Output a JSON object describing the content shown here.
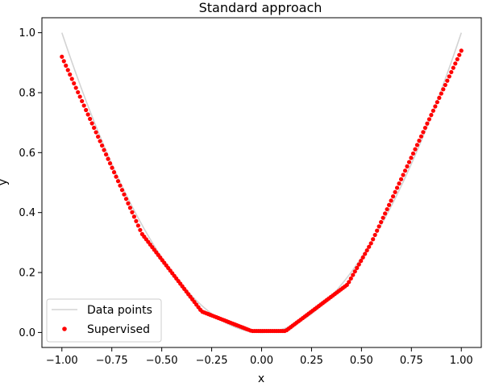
{
  "chart_data": {
    "type": "line",
    "title": "Standard approach",
    "xlabel": "x",
    "ylabel": "y",
    "xlim": [
      -1.1,
      1.1
    ],
    "ylim": [
      -0.05,
      1.05
    ],
    "grid": false,
    "legend_placement": "bottom-left",
    "xticks": [
      -1.0,
      -0.75,
      -0.5,
      -0.25,
      0.0,
      0.25,
      0.5,
      0.75,
      1.0
    ],
    "xtick_labels": [
      "−1.00",
      "−0.75",
      "−0.50",
      "−0.25",
      "0.00",
      "0.25",
      "0.50",
      "0.75",
      "1.00"
    ],
    "yticks": [
      0.0,
      0.2,
      0.4,
      0.6,
      0.8,
      1.0
    ],
    "ytick_labels": [
      "0.0",
      "0.2",
      "0.4",
      "0.6",
      "0.8",
      "1.0"
    ],
    "series": [
      {
        "name": "Data points",
        "style": "line",
        "color": "#d3d3d3",
        "function": "y = x^2",
        "x_range": [
          -1.0,
          1.0
        ]
      },
      {
        "name": "Supervised",
        "style": "markers",
        "color": "#ff0000",
        "x_range": [
          -1.0,
          1.0
        ],
        "n_points": 200,
        "knots": [
          [
            -1.0,
            0.92
          ],
          [
            -0.6,
            0.33
          ],
          [
            -0.3,
            0.07
          ],
          [
            -0.05,
            0.005
          ],
          [
            0.12,
            0.005
          ],
          [
            0.43,
            0.16
          ],
          [
            0.55,
            0.3
          ],
          [
            1.0,
            0.94
          ]
        ]
      }
    ]
  }
}
